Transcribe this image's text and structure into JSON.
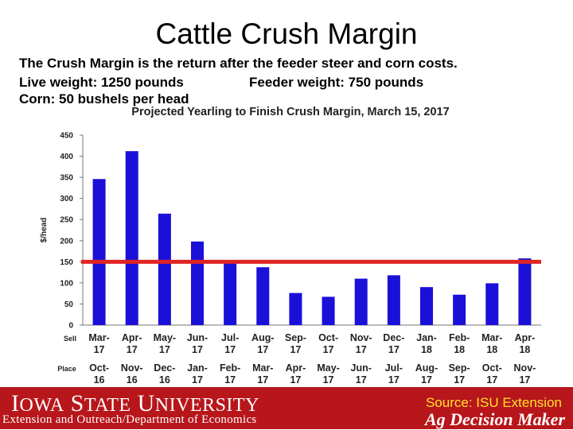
{
  "slide": {
    "title": "Cattle Crush Margin",
    "line1": "The Crush Margin is the return after the feeder steer and corn costs.",
    "live_weight": "Live weight:  1250 pounds",
    "feeder_weight": "Feeder weight:  750 pounds",
    "corn": "Corn:  50 bushels per head"
  },
  "chart_data": {
    "type": "bar",
    "title": "Projected Yearling to Finish Crush Margin, March 15, 2017",
    "ylabel": "$/head",
    "xlabel": "",
    "ylim": [
      0,
      450
    ],
    "yticks": [
      0,
      50,
      100,
      150,
      200,
      250,
      300,
      350,
      400,
      450
    ],
    "row_labels": [
      "Sell",
      "Place"
    ],
    "sell": [
      [
        "Mar-",
        "17"
      ],
      [
        "Apr-",
        "17"
      ],
      [
        "May-",
        "17"
      ],
      [
        "Jun-",
        "17"
      ],
      [
        "Jul-",
        "17"
      ],
      [
        "Aug-",
        "17"
      ],
      [
        "Sep-",
        "17"
      ],
      [
        "Oct-",
        "17"
      ],
      [
        "Nov-",
        "17"
      ],
      [
        "Dec-",
        "17"
      ],
      [
        "Jan-",
        "18"
      ],
      [
        "Feb-",
        "18"
      ],
      [
        "Mar-",
        "18"
      ],
      [
        "Apr-",
        "18"
      ]
    ],
    "place": [
      [
        "Oct-",
        "16"
      ],
      [
        "Nov-",
        "16"
      ],
      [
        "Dec-",
        "16"
      ],
      [
        "Jan-",
        "17"
      ],
      [
        "Feb-",
        "17"
      ],
      [
        "Mar-",
        "17"
      ],
      [
        "Apr-",
        "17"
      ],
      [
        "May-",
        "17"
      ],
      [
        "Jun-",
        "17"
      ],
      [
        "Jul-",
        "17"
      ],
      [
        "Aug-",
        "17"
      ],
      [
        "Sep-",
        "17"
      ],
      [
        "Oct-",
        "17"
      ],
      [
        "Nov-",
        "17"
      ]
    ],
    "values": [
      346,
      412,
      264,
      198,
      153,
      137,
      76,
      67,
      110,
      118,
      90,
      72,
      99,
      158
    ],
    "reference_line": 150,
    "bar_color": "#1a10d8",
    "reference_color": "#e02424",
    "grid": false
  },
  "footer": {
    "university": "Iowa State University",
    "department": "Extension and Outreach/Department of Economics",
    "source": "Source: ISU Extension",
    "brand": "Ag Decision Maker",
    "bg_color": "#b7161b"
  }
}
